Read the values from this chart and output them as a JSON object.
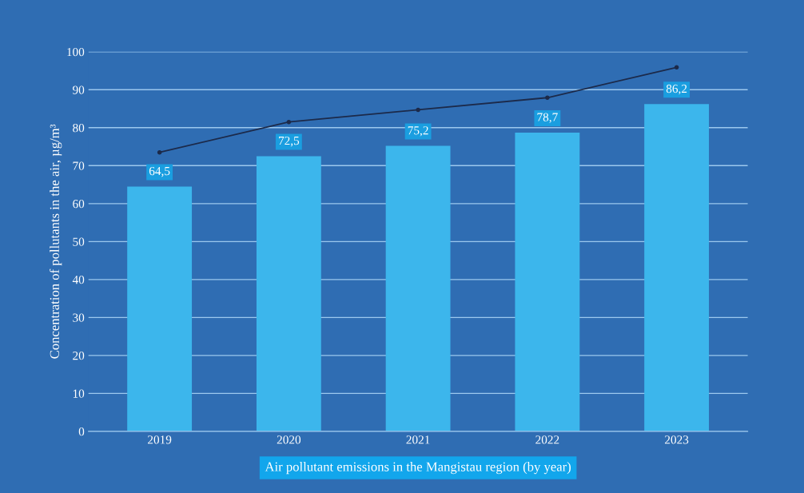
{
  "chart_data": {
    "type": "bar",
    "xlabel": "Air pollutant emissions in the Mangistau region (by year)",
    "ylabel": "Concentration of pollutants in the air, µg/m³",
    "categories": [
      "2019",
      "2020",
      "2021",
      "2022",
      "2023"
    ],
    "series": [
      {
        "color": "#3cb6ec",
        "values": [
          64.5,
          72.5,
          75.2,
          78.7,
          86.2
        ],
        "value_labels": [
          "64,5",
          "72,5",
          "75,2",
          "78,7",
          "86,2"
        ]
      },
      {
        "type": "line",
        "color": "#1c2a4a",
        "values": [
          73.5,
          81.5,
          84.7,
          87.9,
          95.9
        ],
        "marker": "circle",
        "line_style": "solid"
      }
    ],
    "ylim": [
      0,
      100
    ],
    "yticks": [
      0,
      10,
      20,
      30,
      40,
      50,
      60,
      70,
      80,
      90,
      100
    ],
    "grid": "y",
    "legend": false
  }
}
